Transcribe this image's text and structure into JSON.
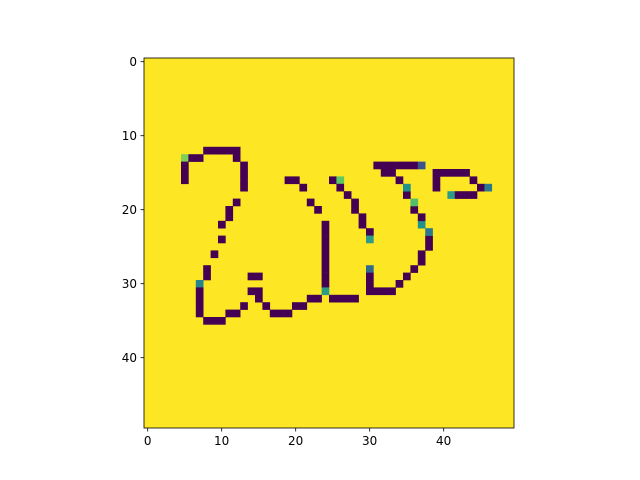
{
  "chart_data": {
    "type": "heatmap",
    "title": "",
    "xlabel": "",
    "ylabel": "",
    "grid": false,
    "legend": "none",
    "shape": [
      50,
      50
    ],
    "xlim": [
      -0.5,
      49.5
    ],
    "ylim": [
      49.5,
      -0.5
    ],
    "x_ticks": [
      0,
      10,
      20,
      30,
      40
    ],
    "y_ticks": [
      0,
      10,
      20,
      30,
      40
    ],
    "x_tick_labels": [
      "0",
      "10",
      "20",
      "30",
      "40"
    ],
    "y_tick_labels": [
      "0",
      "10",
      "20",
      "30",
      "40"
    ],
    "colormap": "viridis",
    "background_value": 1.0,
    "colors": {
      "background": "#fde725",
      "stroke": "#440154",
      "mid_teal": "#21908d",
      "mid_green": "#5ec962",
      "light_green": "#b5de2b",
      "mid_blue": "#3b528b"
    },
    "cells": [
      {
        "x": 5,
        "y": 13,
        "value": 0.8
      },
      {
        "x": 8,
        "y": 12,
        "value": 0.0
      },
      {
        "x": 9,
        "y": 12,
        "value": 0.0
      },
      {
        "x": 10,
        "y": 12,
        "value": 0.0
      },
      {
        "x": 11,
        "y": 12,
        "value": 0.0
      },
      {
        "x": 12,
        "y": 12,
        "value": 0.0
      },
      {
        "x": 6,
        "y": 13,
        "value": 0.0
      },
      {
        "x": 7,
        "y": 13,
        "value": 0.0
      },
      {
        "x": 12,
        "y": 13,
        "value": 0.0
      },
      {
        "x": 5,
        "y": 14,
        "value": 0.0
      },
      {
        "x": 13,
        "y": 14,
        "value": 0.0
      },
      {
        "x": 5,
        "y": 15,
        "value": 0.0
      },
      {
        "x": 13,
        "y": 15,
        "value": 0.0
      },
      {
        "x": 5,
        "y": 16,
        "value": 0.0
      },
      {
        "x": 13,
        "y": 16,
        "value": 0.0
      },
      {
        "x": 13,
        "y": 17,
        "value": 0.0
      },
      {
        "x": 12,
        "y": 19,
        "value": 0.0
      },
      {
        "x": 11,
        "y": 20,
        "value": 0.0
      },
      {
        "x": 11,
        "y": 21,
        "value": 0.0
      },
      {
        "x": 10,
        "y": 22,
        "value": 0.0
      },
      {
        "x": 10,
        "y": 24,
        "value": 0.0
      },
      {
        "x": 9,
        "y": 26,
        "value": 0.0
      },
      {
        "x": 8,
        "y": 28,
        "value": 0.0
      },
      {
        "x": 8,
        "y": 29,
        "value": 0.0
      },
      {
        "x": 7,
        "y": 30,
        "value": 0.45
      },
      {
        "x": 7,
        "y": 31,
        "value": 0.0
      },
      {
        "x": 7,
        "y": 32,
        "value": 0.0
      },
      {
        "x": 7,
        "y": 33,
        "value": 0.0
      },
      {
        "x": 7,
        "y": 34,
        "value": 0.0
      },
      {
        "x": 8,
        "y": 35,
        "value": 0.0
      },
      {
        "x": 9,
        "y": 35,
        "value": 0.0
      },
      {
        "x": 10,
        "y": 35,
        "value": 0.0
      },
      {
        "x": 11,
        "y": 34,
        "value": 0.0
      },
      {
        "x": 12,
        "y": 34,
        "value": 0.0
      },
      {
        "x": 13,
        "y": 33,
        "value": 0.0
      },
      {
        "x": 14,
        "y": 29,
        "value": 0.0
      },
      {
        "x": 15,
        "y": 29,
        "value": 0.0
      },
      {
        "x": 14,
        "y": 31,
        "value": 0.0
      },
      {
        "x": 15,
        "y": 31,
        "value": 0.0
      },
      {
        "x": 15,
        "y": 32,
        "value": 0.0
      },
      {
        "x": 16,
        "y": 33,
        "value": 0.0
      },
      {
        "x": 17,
        "y": 34,
        "value": 0.0
      },
      {
        "x": 18,
        "y": 34,
        "value": 0.0
      },
      {
        "x": 19,
        "y": 34,
        "value": 0.0
      },
      {
        "x": 20,
        "y": 33,
        "value": 0.0
      },
      {
        "x": 21,
        "y": 33,
        "value": 0.0
      },
      {
        "x": 22,
        "y": 32,
        "value": 0.0
      },
      {
        "x": 23,
        "y": 32,
        "value": 0.0
      },
      {
        "x": 19,
        "y": 16,
        "value": 0.0
      },
      {
        "x": 20,
        "y": 16,
        "value": 0.0
      },
      {
        "x": 21,
        "y": 17,
        "value": 0.0
      },
      {
        "x": 22,
        "y": 19,
        "value": 0.0
      },
      {
        "x": 23,
        "y": 20,
        "value": 0.0
      },
      {
        "x": 24,
        "y": 22,
        "value": 0.0
      },
      {
        "x": 24,
        "y": 23,
        "value": 0.0
      },
      {
        "x": 24,
        "y": 24,
        "value": 0.0
      },
      {
        "x": 24,
        "y": 25,
        "value": 0.0
      },
      {
        "x": 24,
        "y": 26,
        "value": 0.0
      },
      {
        "x": 24,
        "y": 27,
        "value": 0.0
      },
      {
        "x": 24,
        "y": 28,
        "value": 0.0
      },
      {
        "x": 24,
        "y": 29,
        "value": 0.0
      },
      {
        "x": 24,
        "y": 30,
        "value": 0.0
      },
      {
        "x": 24,
        "y": 31,
        "value": 0.55
      },
      {
        "x": 25,
        "y": 32,
        "value": 0.0
      },
      {
        "x": 26,
        "y": 32,
        "value": 0.0
      },
      {
        "x": 27,
        "y": 32,
        "value": 0.0
      },
      {
        "x": 28,
        "y": 32,
        "value": 0.0
      },
      {
        "x": 25,
        "y": 16,
        "value": 0.0
      },
      {
        "x": 26,
        "y": 16,
        "value": 0.75
      },
      {
        "x": 26,
        "y": 17,
        "value": 0.0
      },
      {
        "x": 27,
        "y": 18,
        "value": 0.0
      },
      {
        "x": 28,
        "y": 19,
        "value": 0.0
      },
      {
        "x": 28,
        "y": 20,
        "value": 0.0
      },
      {
        "x": 29,
        "y": 21,
        "value": 0.0
      },
      {
        "x": 29,
        "y": 22,
        "value": 0.0
      },
      {
        "x": 30,
        "y": 23,
        "value": 0.0
      },
      {
        "x": 30,
        "y": 24,
        "value": 0.55
      },
      {
        "x": 30,
        "y": 28,
        "value": 0.35
      },
      {
        "x": 30,
        "y": 29,
        "value": 0.0
      },
      {
        "x": 30,
        "y": 30,
        "value": 0.0
      },
      {
        "x": 30,
        "y": 31,
        "value": 0.0
      },
      {
        "x": 31,
        "y": 31,
        "value": 0.0
      },
      {
        "x": 32,
        "y": 31,
        "value": 0.0
      },
      {
        "x": 33,
        "y": 31,
        "value": 0.0
      },
      {
        "x": 34,
        "y": 30,
        "value": 0.0
      },
      {
        "x": 35,
        "y": 29,
        "value": 0.0
      },
      {
        "x": 36,
        "y": 28,
        "value": 0.0
      },
      {
        "x": 37,
        "y": 27,
        "value": 0.0
      },
      {
        "x": 37,
        "y": 26,
        "value": 0.0
      },
      {
        "x": 38,
        "y": 25,
        "value": 0.0
      },
      {
        "x": 38,
        "y": 24,
        "value": 0.0
      },
      {
        "x": 38,
        "y": 23,
        "value": 0.4
      },
      {
        "x": 37,
        "y": 22,
        "value": 0.5
      },
      {
        "x": 37,
        "y": 21,
        "value": 0.0
      },
      {
        "x": 36,
        "y": 20,
        "value": 0.0
      },
      {
        "x": 36,
        "y": 19,
        "value": 0.7
      },
      {
        "x": 35,
        "y": 18,
        "value": 0.0
      },
      {
        "x": 35,
        "y": 17,
        "value": 0.5
      },
      {
        "x": 34,
        "y": 16,
        "value": 0.0
      },
      {
        "x": 33,
        "y": 15,
        "value": 0.0
      },
      {
        "x": 32,
        "y": 15,
        "value": 0.0
      },
      {
        "x": 31,
        "y": 14,
        "value": 0.0
      },
      {
        "x": 32,
        "y": 14,
        "value": 0.0
      },
      {
        "x": 33,
        "y": 14,
        "value": 0.0
      },
      {
        "x": 34,
        "y": 14,
        "value": 0.0
      },
      {
        "x": 35,
        "y": 14,
        "value": 0.0
      },
      {
        "x": 36,
        "y": 14,
        "value": 0.0
      },
      {
        "x": 37,
        "y": 14,
        "value": 0.25
      },
      {
        "x": 39,
        "y": 15,
        "value": 0.0
      },
      {
        "x": 40,
        "y": 15,
        "value": 0.0
      },
      {
        "x": 41,
        "y": 15,
        "value": 0.0
      },
      {
        "x": 42,
        "y": 15,
        "value": 0.0
      },
      {
        "x": 43,
        "y": 15,
        "value": 0.0
      },
      {
        "x": 39,
        "y": 16,
        "value": 0.0
      },
      {
        "x": 44,
        "y": 16,
        "value": 0.0
      },
      {
        "x": 39,
        "y": 17,
        "value": 0.0
      },
      {
        "x": 45,
        "y": 17,
        "value": 0.0
      },
      {
        "x": 46,
        "y": 17,
        "value": 0.4
      },
      {
        "x": 41,
        "y": 18,
        "value": 0.55
      },
      {
        "x": 42,
        "y": 18,
        "value": 0.0
      },
      {
        "x": 43,
        "y": 18,
        "value": 0.0
      },
      {
        "x": 44,
        "y": 18,
        "value": 0.0
      }
    ]
  }
}
